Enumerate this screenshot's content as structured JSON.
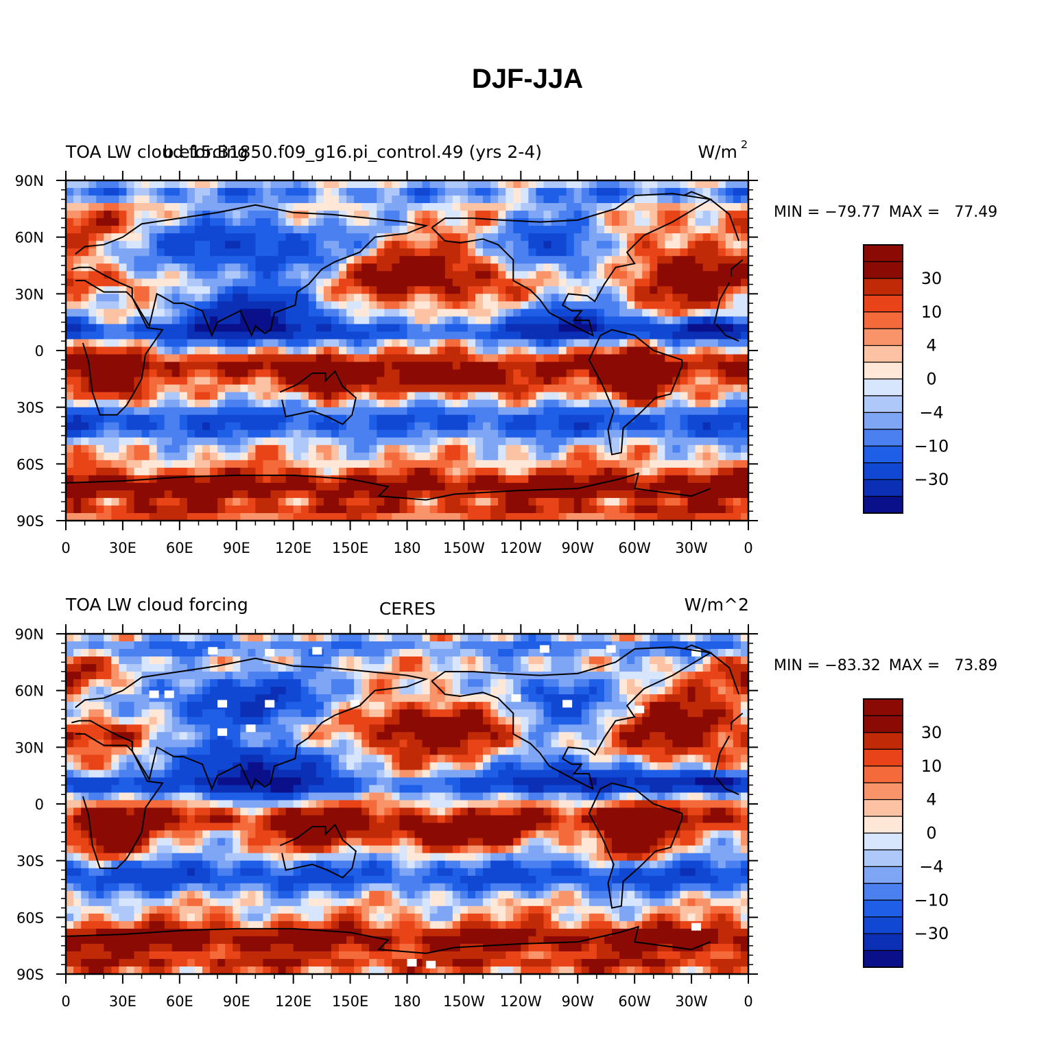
{
  "figure": {
    "title": "DJF-JJA"
  },
  "palette": [
    "#0a0f8a",
    "#0b2fb5",
    "#1048d4",
    "#1f5fe8",
    "#4a80f0",
    "#7fa6f5",
    "#afc8fa",
    "#d8e6fd",
    "#ffe8d8",
    "#fcc2a4",
    "#f9946a",
    "#f56a3a",
    "#e84417",
    "#c02a07",
    "#8c0a04"
  ],
  "panels": [
    {
      "id": "model",
      "left_title": "TOA LW cloud forcing",
      "center_title": "b.e15.B1850.f09_g16.pi_control.49 (yrs 2-4)",
      "units": "W/m",
      "units_sup": "2",
      "min_label": "MIN = ",
      "min_value": "−79.77",
      "max_label": "MAX = ",
      "max_value": "77.49"
    },
    {
      "id": "obs",
      "left_title": "TOA LW cloud forcing",
      "center_title": "CERES",
      "units": "W/m^2",
      "units_sup": "",
      "min_label": "MIN = ",
      "min_value": "−83.32",
      "max_label": "MAX = ",
      "max_value": "73.89"
    }
  ],
  "lat_ticks": [
    "90N",
    "60N",
    "30N",
    "0",
    "30S",
    "60S",
    "90S"
  ],
  "lon_ticks": [
    "0",
    "30E",
    "60E",
    "90E",
    "120E",
    "150E",
    "180",
    "150W",
    "120W",
    "90W",
    "60W",
    "30W",
    "0"
  ],
  "colorbar_labels": [
    "30",
    "10",
    "4",
    "0",
    "−4",
    "−10",
    "−30"
  ],
  "chart_data": {
    "type": "heatmap",
    "title": "DJF-JJA",
    "variable": "TOA LW cloud forcing",
    "units": "W/m^2",
    "x_ticks": [
      "0",
      "30E",
      "60E",
      "90E",
      "120E",
      "150E",
      "180",
      "150W",
      "120W",
      "90W",
      "60W",
      "30W",
      "0"
    ],
    "y_ticks": [
      "90N",
      "60N",
      "30N",
      "0",
      "30S",
      "60S",
      "90S"
    ],
    "xlim": [
      0,
      360
    ],
    "ylim": [
      -90,
      90
    ],
    "contour_levels": [
      -40,
      -30,
      -20,
      -15,
      -10,
      -6,
      -4,
      -2,
      0,
      2,
      4,
      6,
      10,
      15,
      20,
      30,
      40
    ],
    "colorbar_labels": [
      "30",
      "10",
      "4",
      "0",
      "−4",
      "−10",
      "−30"
    ],
    "panels": [
      {
        "name": "b.e15.B1850.f09_g16.pi_control.49 (yrs 2-4)",
        "min": -79.77,
        "max": 77.49
      },
      {
        "name": "CERES",
        "min": -83.32,
        "max": 73.89
      }
    ]
  }
}
